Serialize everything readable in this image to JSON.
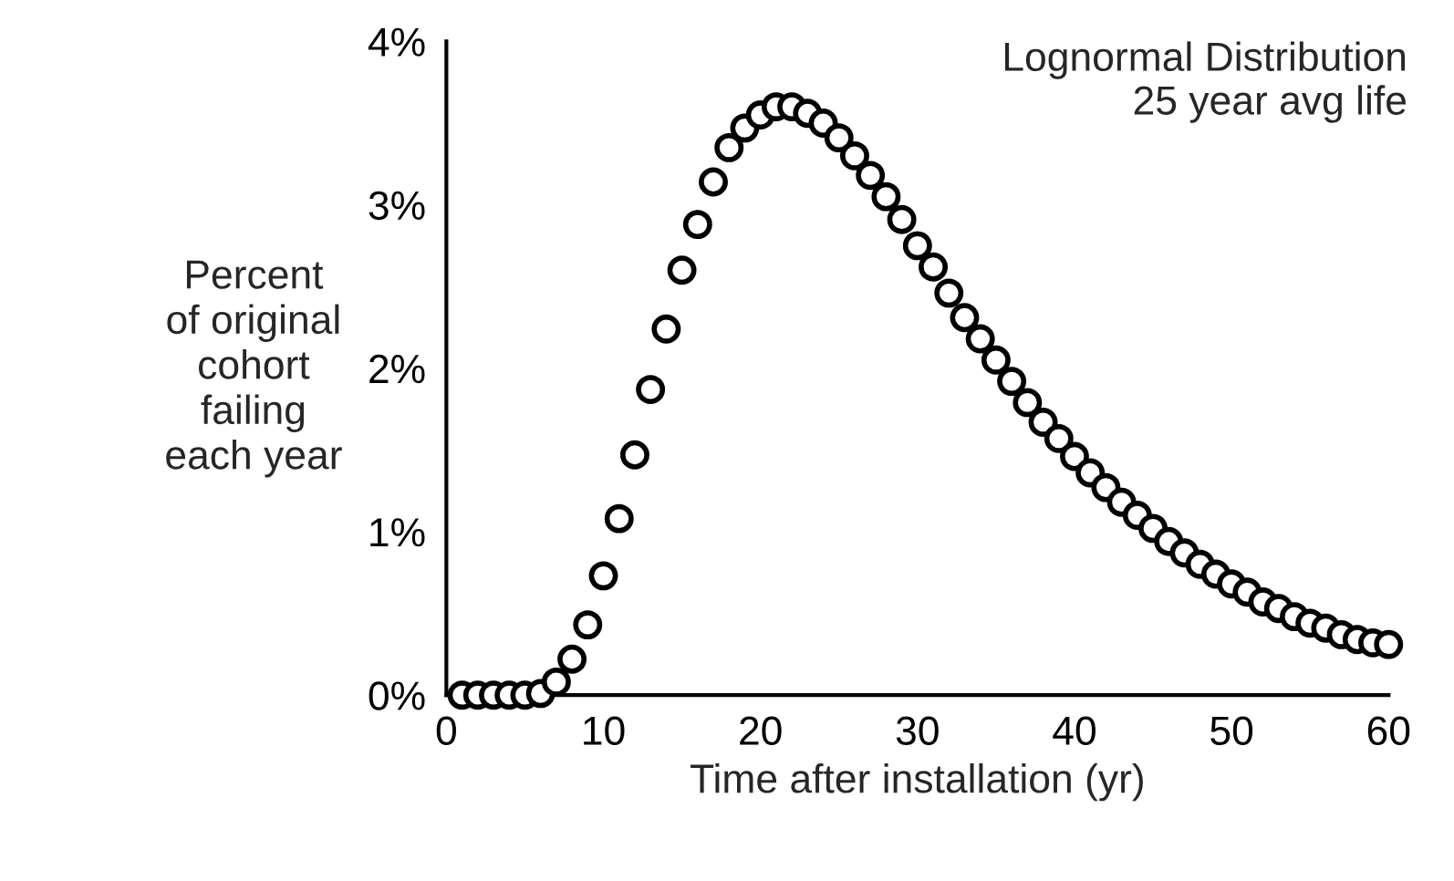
{
  "chart_data": {
    "type": "scatter",
    "xlabel": "Time after installation (yr)",
    "ylabel": "Percent\nof original\ncohort\nfailing\neach year",
    "annotations": [
      "Lognormal Distribution\n25 year avg life"
    ],
    "x": [
      1,
      2,
      3,
      4,
      5,
      6,
      7,
      8,
      9,
      10,
      11,
      12,
      13,
      14,
      15,
      16,
      17,
      18,
      19,
      20,
      21,
      22,
      23,
      24,
      25,
      26,
      27,
      28,
      29,
      30,
      31,
      32,
      33,
      34,
      35,
      36,
      37,
      38,
      39,
      40,
      41,
      42,
      43,
      44,
      45,
      46,
      47,
      48,
      49,
      50,
      51,
      52,
      53,
      54,
      55,
      56,
      57,
      58,
      59,
      60
    ],
    "series": [
      {
        "color": "#000000",
        "values": [
          0,
          0,
          0,
          0,
          0,
          0.01,
          0.08,
          0.22,
          0.43,
          0.73,
          1.08,
          1.47,
          1.87,
          2.24,
          2.6,
          2.88,
          3.14,
          3.35,
          3.47,
          3.55,
          3.6,
          3.6,
          3.56,
          3.5,
          3.41,
          3.3,
          3.18,
          3.05,
          2.91,
          2.75,
          2.62,
          2.46,
          2.31,
          2.18,
          2.05,
          1.92,
          1.79,
          1.67,
          1.57,
          1.46,
          1.36,
          1.27,
          1.18,
          1.1,
          1.02,
          0.94,
          0.87,
          0.8,
          0.74,
          0.68,
          0.63,
          0.57,
          0.53,
          0.48,
          0.44,
          0.41,
          0.37,
          0.34,
          0.32,
          0.31
        ]
      }
    ],
    "xlim": [
      0,
      60
    ],
    "xticks": [
      0,
      10,
      20,
      30,
      40,
      50,
      60
    ],
    "ylim": [
      0,
      4
    ],
    "yticks": [
      {
        "value": 0,
        "label": "0%"
      },
      {
        "value": 1,
        "label": "1%"
      },
      {
        "value": 2,
        "label": "2%"
      },
      {
        "value": 3,
        "label": "3%"
      },
      {
        "value": 4,
        "label": "4%"
      }
    ],
    "marker": "circle",
    "grid": false,
    "legend": false
  }
}
